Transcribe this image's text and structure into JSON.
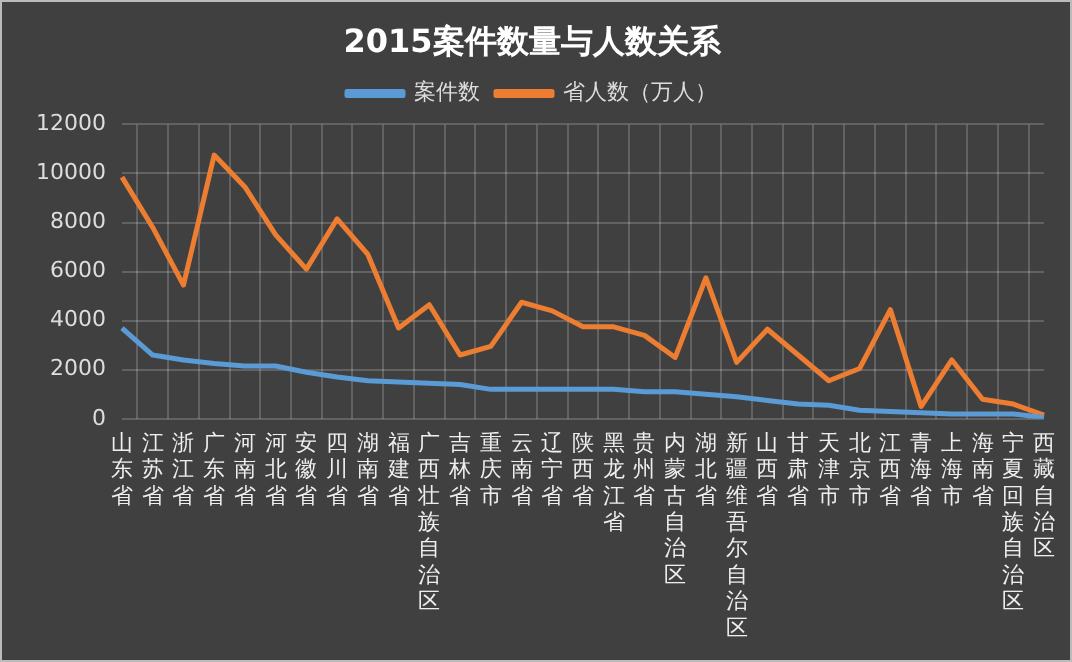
{
  "chart_data": {
    "type": "line",
    "title": "2015案件数量与人数关系",
    "categories": [
      "山东省",
      "江苏省",
      "浙江省",
      "广东省",
      "河南省",
      "河北省",
      "安徽省",
      "四川省",
      "湖南省",
      "福建省",
      "广西壮族自治区",
      "吉林省",
      "重庆市",
      "云南省",
      "辽宁省",
      "陕西省",
      "黑龙江省",
      "贵州省",
      "内蒙古自治区",
      "湖北省",
      "新疆维吾尔自治区",
      "山西省",
      "甘肃省",
      "天津市",
      "北京市",
      "江西省",
      "青海省",
      "上海市",
      "海南省",
      "宁夏回族自治区",
      "西藏自治区"
    ],
    "series": [
      {
        "name": "案件数",
        "color": "#5b9bd5",
        "values": [
          3700,
          2600,
          2400,
          2250,
          2150,
          2150,
          1900,
          1700,
          1550,
          1500,
          1450,
          1400,
          1200,
          1200,
          1200,
          1200,
          1200,
          1100,
          1100,
          1000,
          900,
          750,
          600,
          550,
          350,
          300,
          250,
          200,
          200,
          200,
          50
        ]
      },
      {
        "name": "省人数（万人）",
        "color": "#ed7d31",
        "values": [
          9850,
          7800,
          5450,
          10750,
          9450,
          7500,
          6100,
          8150,
          6700,
          3700,
          4650,
          2600,
          2950,
          4750,
          4400,
          3750,
          3750,
          3400,
          2500,
          5750,
          2300,
          3650,
          2600,
          1550,
          2050,
          4450,
          500,
          2400,
          800,
          600,
          150
        ]
      }
    ],
    "ylim": [
      0,
      12000
    ],
    "yticks": [
      0,
      2000,
      4000,
      6000,
      8000,
      10000,
      12000
    ],
    "grid": true,
    "legend": "top",
    "marker": "none",
    "line_style": "solid"
  }
}
